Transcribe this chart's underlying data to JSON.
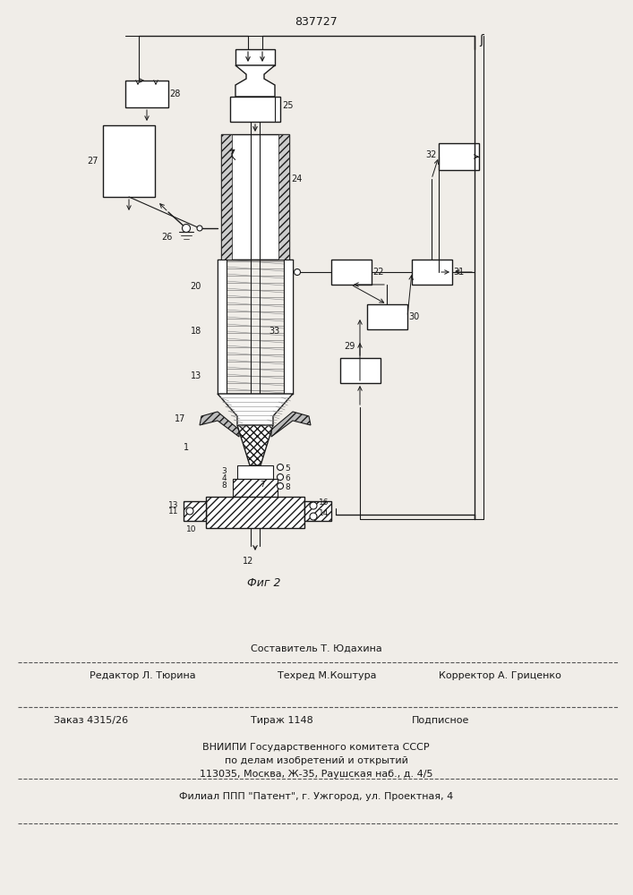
{
  "patent_number": "837727",
  "fig_label": "Фиг 2",
  "bg_color": "#f0ede8",
  "line_color": "#1a1a1a",
  "footer_lines": [
    "Составитель Т. Юдахина",
    "Редактор Л. Тюрина",
    "Техред М.Коштура",
    "Корректор А. Гриценко",
    "Заказ 4315/26",
    "Тираж 1148",
    "Подписное",
    "ВНИИПИ Государственного комитета СССР",
    "по делам изобретений и открытий",
    "113035, Москва, Ж-35, Раушская наб., д. 4/5",
    "Филиал ППП \"Патент\", г. Ужгород, ул. Проектная, 4"
  ]
}
